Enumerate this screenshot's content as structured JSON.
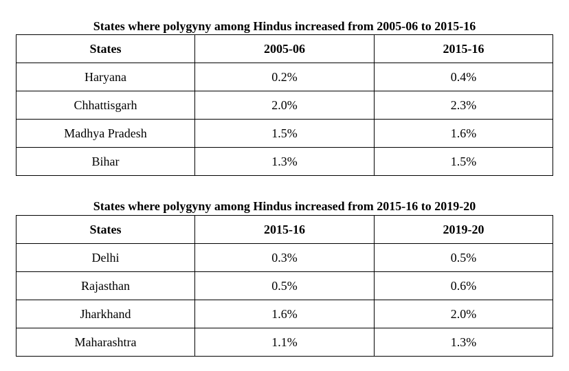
{
  "tables": [
    {
      "caption": "States where polygyny among Hindus increased from 2005-06 to 2015-16",
      "headers": [
        "States",
        "2005-06",
        "2015-16"
      ],
      "rows": [
        [
          "Haryana",
          "0.2%",
          "0.4%"
        ],
        [
          "Chhattisgarh",
          "2.0%",
          "2.3%"
        ],
        [
          "Madhya Pradesh",
          "1.5%",
          "1.6%"
        ],
        [
          "Bihar",
          "1.3%",
          "1.5%"
        ]
      ]
    },
    {
      "caption": "States where polygyny among Hindus increased from 2015-16 to 2019-20",
      "headers": [
        "States",
        "2015-16",
        "2019-20"
      ],
      "rows": [
        [
          "Delhi",
          "0.3%",
          "0.5%"
        ],
        [
          "Rajasthan",
          "0.5%",
          "0.6%"
        ],
        [
          "Jharkhand",
          "1.6%",
          "2.0%"
        ],
        [
          "Maharashtra",
          "1.1%",
          "1.3%"
        ]
      ]
    }
  ]
}
